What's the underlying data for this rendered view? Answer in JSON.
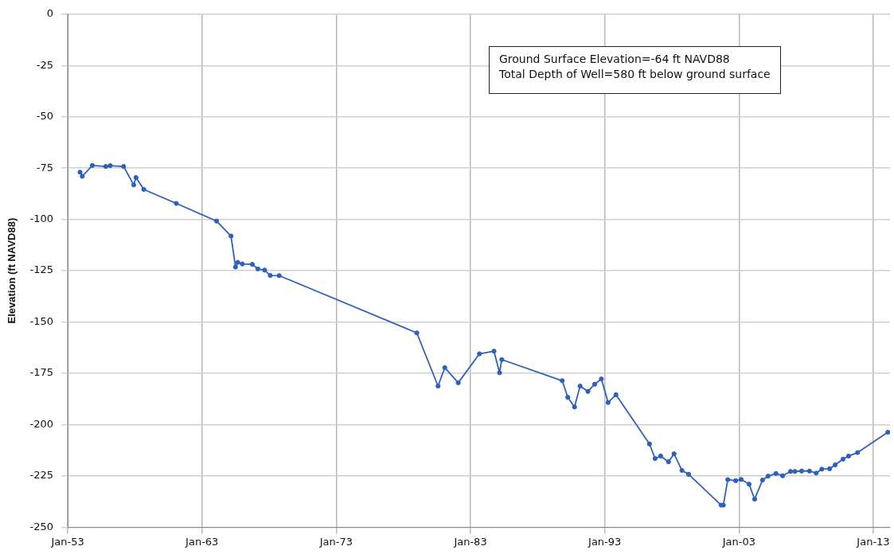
{
  "chart_data": {
    "type": "line",
    "ylabel": "Elevation (ft NAVD88)",
    "annotations": [
      "Ground Surface Elevation=-64 ft NAVD88",
      "Total Depth of Well=580 ft below ground surface"
    ],
    "x": [
      "1953-12",
      "1954-02",
      "1954-11",
      "1955-11",
      "1956-03",
      "1957-03",
      "1957-12",
      "1958-02",
      "1958-09",
      "1961-02",
      "1964-02",
      "1965-03",
      "1965-07",
      "1965-09",
      "1966-01",
      "1966-10",
      "1967-03",
      "1967-09",
      "1968-02",
      "1968-10",
      "1979-01",
      "1980-08",
      "1981-02",
      "1982-02",
      "1983-09",
      "1984-10",
      "1985-03",
      "1985-05",
      "1989-11",
      "1990-04",
      "1990-10",
      "1991-03",
      "1991-10",
      "1992-04",
      "1992-10",
      "1993-04",
      "1993-11",
      "1996-05",
      "1996-10",
      "1997-03",
      "1997-10",
      "1998-03",
      "1998-10",
      "1999-04",
      "2001-09",
      "2001-11",
      "2002-03",
      "2002-10",
      "2003-03",
      "2003-10",
      "2004-03",
      "2004-10",
      "2005-03",
      "2005-10",
      "2006-04",
      "2006-11",
      "2007-03",
      "2007-09",
      "2008-04",
      "2008-10",
      "2009-03",
      "2009-10",
      "2010-03",
      "2010-10",
      "2011-03",
      "2011-11",
      "2014-02"
    ],
    "series": [
      {
        "color": "#2f5fbf",
        "values": [
          -77.0,
          -79.0,
          -73.7,
          -74.2,
          -73.8,
          -74.2,
          -83.2,
          -79.6,
          -85.4,
          -92.2,
          -100.8,
          -108.1,
          -123.2,
          -120.9,
          -121.7,
          -121.9,
          -124.1,
          -124.7,
          -127.3,
          -127.4,
          -155.3,
          -181.2,
          -172.2,
          -179.6,
          -165.5,
          -164.2,
          -174.7,
          -168.3,
          -178.6,
          -186.7,
          -191.4,
          -181.2,
          -183.8,
          -180.3,
          -177.7,
          -189.2,
          -185.4,
          -209.4,
          -216.5,
          -215.3,
          -218.1,
          -214.2,
          -222.3,
          -224.2,
          -239.2,
          -239.2,
          -226.8,
          -227.3,
          -226.7,
          -229.0,
          -236.3,
          -227.0,
          -225.1,
          -223.8,
          -224.9,
          -222.8,
          -222.8,
          -222.6,
          -222.6,
          -223.6,
          -221.7,
          -221.5,
          -219.6,
          -216.8,
          -215.3,
          -213.6,
          -203.7
        ]
      }
    ],
    "xlim": [
      "1953-01",
      "2014-04"
    ],
    "xticks": [
      {
        "value": "1953-01",
        "label": "Jan-53"
      },
      {
        "value": "1963-01",
        "label": "Jan-63"
      },
      {
        "value": "1973-01",
        "label": "Jan-73"
      },
      {
        "value": "1983-01",
        "label": "Jan-83"
      },
      {
        "value": "1993-01",
        "label": "Jan-93"
      },
      {
        "value": "2003-01",
        "label": "Jan-03"
      },
      {
        "value": "2013-01",
        "label": "Jan-13"
      }
    ],
    "ylim": [
      -250,
      0
    ],
    "yticks": [
      -250,
      -225,
      -200,
      -175,
      -150,
      -125,
      -100,
      -75,
      -50,
      -25,
      0
    ],
    "grid": true,
    "legend": false,
    "marker": "circle",
    "line_style": "solid"
  }
}
